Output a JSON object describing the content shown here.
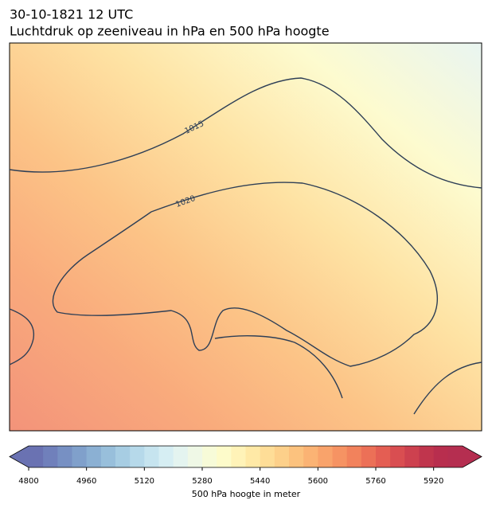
{
  "chart_data": {
    "type": "contour-map",
    "title": "30-10-1821 12 UTC",
    "subtitle": "Luchtdruk op zeeniveau in hPa en 500 hPa hoogte",
    "isobar_labels": [
      1015,
      1020
    ],
    "colorbar": {
      "label": "500 hPa hoogte in meter",
      "lim": [
        4800,
        6000
      ],
      "ticks": [
        4800,
        4960,
        5120,
        5280,
        5440,
        5600,
        5760,
        5920
      ],
      "colors": [
        "#6a72b2",
        "#7080bb",
        "#7790c3",
        "#80a0cb",
        "#8bb0d3",
        "#98bfdb",
        "#a7cde3",
        "#b6d9ea",
        "#c6e4ef",
        "#d6eef3",
        "#e4f4f0",
        "#eff8e6",
        "#f7fbd8",
        "#fdfbca",
        "#fff3b8",
        "#ffe9a6",
        "#fedd97",
        "#fdd08a",
        "#fcc27e",
        "#fbb374",
        "#f9a36b",
        "#f69363",
        "#f2825c",
        "#ec7057",
        "#e45e53",
        "#d94e51",
        "#cd414f",
        "#c0354d",
        "#b82e4e",
        "#b52e50"
      ]
    }
  }
}
